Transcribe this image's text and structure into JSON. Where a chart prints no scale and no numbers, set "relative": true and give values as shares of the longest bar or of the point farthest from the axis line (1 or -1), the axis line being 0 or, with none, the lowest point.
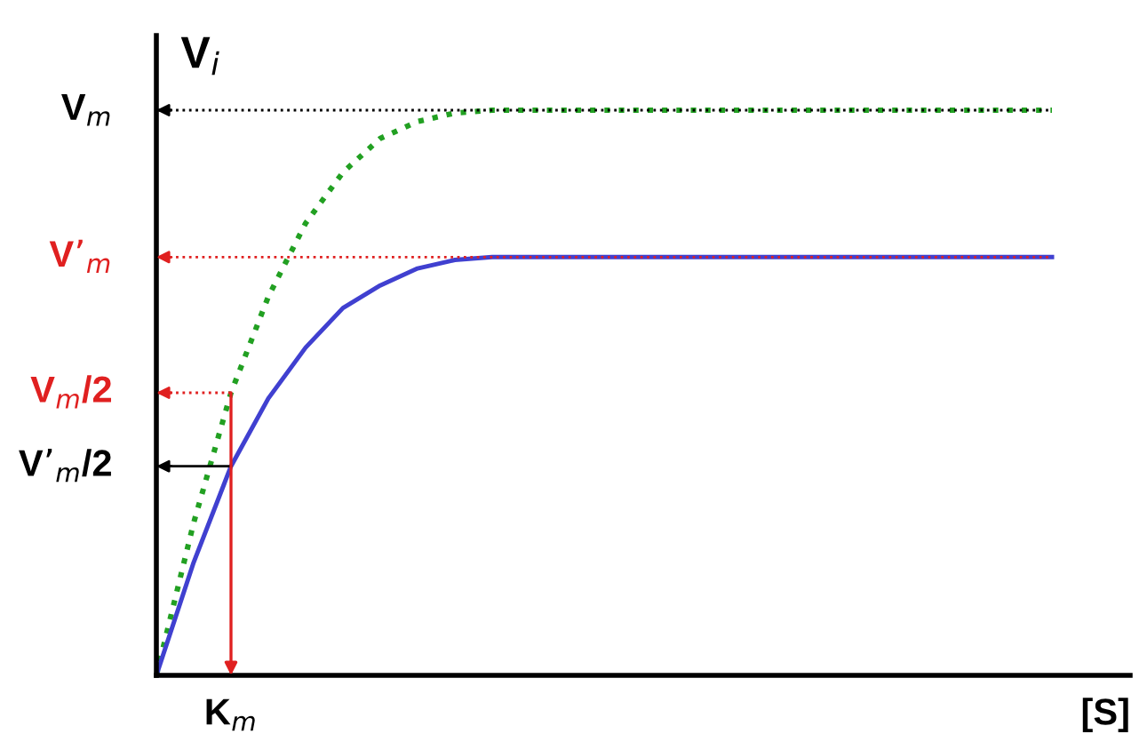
{
  "chart_data": {
    "type": "line",
    "relative": true,
    "ylabel": "V$_{i}$",
    "xlabel": "[S]",
    "categories": [
      null,
      null,
      null,
      null,
      null,
      null,
      null,
      null,
      null,
      null,
      null,
      null,
      null,
      null,
      null,
      null,
      null,
      null,
      null,
      null,
      null,
      null,
      null,
      null,
      null
    ],
    "series": [
      {
        "color": "#22a022",
        "line_style": "dotted",
        "values": [
          0,
          0.27,
          0.5,
          0.67,
          0.8,
          0.89,
          0.95,
          0.98,
          0.995,
          1,
          1,
          1,
          1,
          1,
          1,
          1,
          1,
          1,
          1,
          1,
          1,
          1,
          1,
          1,
          1
        ]
      },
      {
        "color": "#4040d0",
        "line_style": "solid",
        "values": [
          0,
          0.2,
          0.37,
          0.49,
          0.58,
          0.65,
          0.69,
          0.72,
          0.735,
          0.74,
          0.74,
          0.74,
          0.74,
          0.74,
          0.74,
          0.74,
          0.74,
          0.74,
          0.74,
          0.74,
          0.74,
          0.74,
          0.74,
          0.74,
          0.74
        ]
      }
    ],
    "ref_lines": [
      {
        "axis": "y",
        "value": 1,
        "label": "V$_{m}$",
        "color": "#000000",
        "line_style": "dotted"
      },
      {
        "axis": "y",
        "value": 0.74,
        "label": "V’$_{m}$",
        "color": "#e02020",
        "line_style": "dotted"
      },
      {
        "axis": "y",
        "value": 0.5,
        "label": "V$_{m}$/2",
        "color": "#e02020",
        "line_style": "dotted"
      },
      {
        "axis": "y",
        "value": 0.37,
        "label": "V’$_{m}$/2",
        "color": "#000000",
        "line_style": "solid"
      }
    ],
    "annotations": [
      "K$_{m}$"
    ],
    "marker": "none"
  }
}
